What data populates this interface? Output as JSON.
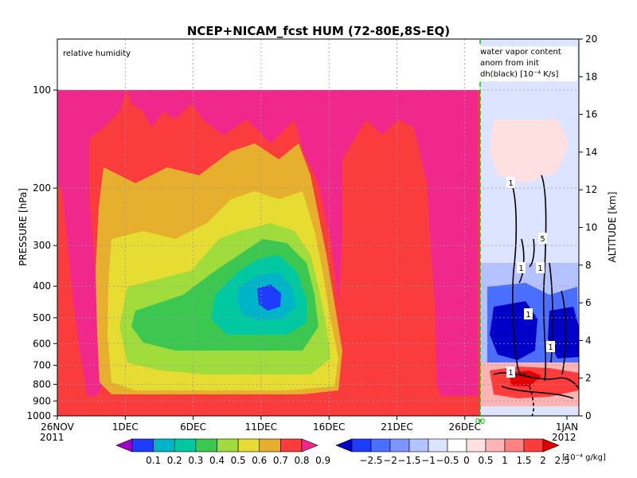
{
  "chart_data": {
    "type": "heatmap",
    "title": "NCEP+NICAM_fcst HUM (72-80E,8S-EQ)",
    "left_panel": {
      "label": "relative humidity",
      "ylabel": "PRESSURE [hPa]",
      "pressure_ticks": [
        "100",
        "200",
        "300",
        "400",
        "500",
        "600",
        "700",
        "800",
        "900",
        "1000"
      ],
      "pressure_values": [
        100,
        200,
        300,
        400,
        500,
        600,
        700,
        800,
        900,
        1000
      ],
      "x_ticks": [
        "26NOV",
        "1DEC",
        "6DEC",
        "11DEC",
        "16DEC",
        "21DEC",
        "26DEC"
      ],
      "x_year_start": "2011",
      "levels": [
        0.1,
        0.2,
        0.3,
        0.4,
        0.5,
        0.6,
        0.7,
        0.8,
        0.9
      ],
      "level_labels": [
        "0.1",
        "0.2",
        "0.3",
        "0.4",
        "0.5",
        "0.6",
        "0.7",
        "0.8",
        "0.9"
      ],
      "colors": [
        "#a000c8",
        "#1e3cff",
        "#00b4c8",
        "#00c8a0",
        "#3cc850",
        "#a0dc3c",
        "#e6dc32",
        "#e6af2d",
        "#fa3c3c",
        "#f0288c"
      ]
    },
    "right_panel": {
      "label_lines": [
        "water vapor content",
        "anom from init",
        "dh(black) [10⁻⁴ K/s]"
      ],
      "ylabel": "ALTITUDE [km]",
      "altitude_ticks": [
        "0",
        "2",
        "4",
        "6",
        "8",
        "10",
        "12",
        "14",
        "16",
        "18",
        "20"
      ],
      "altitude_values": [
        0,
        2,
        4,
        6,
        8,
        10,
        12,
        14,
        16,
        18,
        20
      ],
      "x_ticks": [
        "1JAN"
      ],
      "x_year_end": "2012",
      "init_marker": "00",
      "contour_labels": [
        "1",
        "1",
        "5",
        "1",
        "1",
        "1",
        "1"
      ],
      "levels": [
        -2.5,
        -2,
        -1.5,
        -1,
        -0.5,
        0,
        0.5,
        1,
        1.5,
        2,
        2.5
      ],
      "level_labels": [
        "−2.5",
        "−2",
        "−1.5",
        "−1",
        "−0.5",
        "0",
        "0.5",
        "1",
        "1.5",
        "2",
        "2.5"
      ],
      "unit": "[10⁻⁴ g/kg]",
      "colors": [
        "#0000c8",
        "#1e3cff",
        "#4a6eff",
        "#7d96ff",
        "#b4c3ff",
        "#dce4ff",
        "#ffffff",
        "#ffe0e0",
        "#ffb4b4",
        "#ff8282",
        "#ff3c3c",
        "#e00000"
      ]
    }
  }
}
